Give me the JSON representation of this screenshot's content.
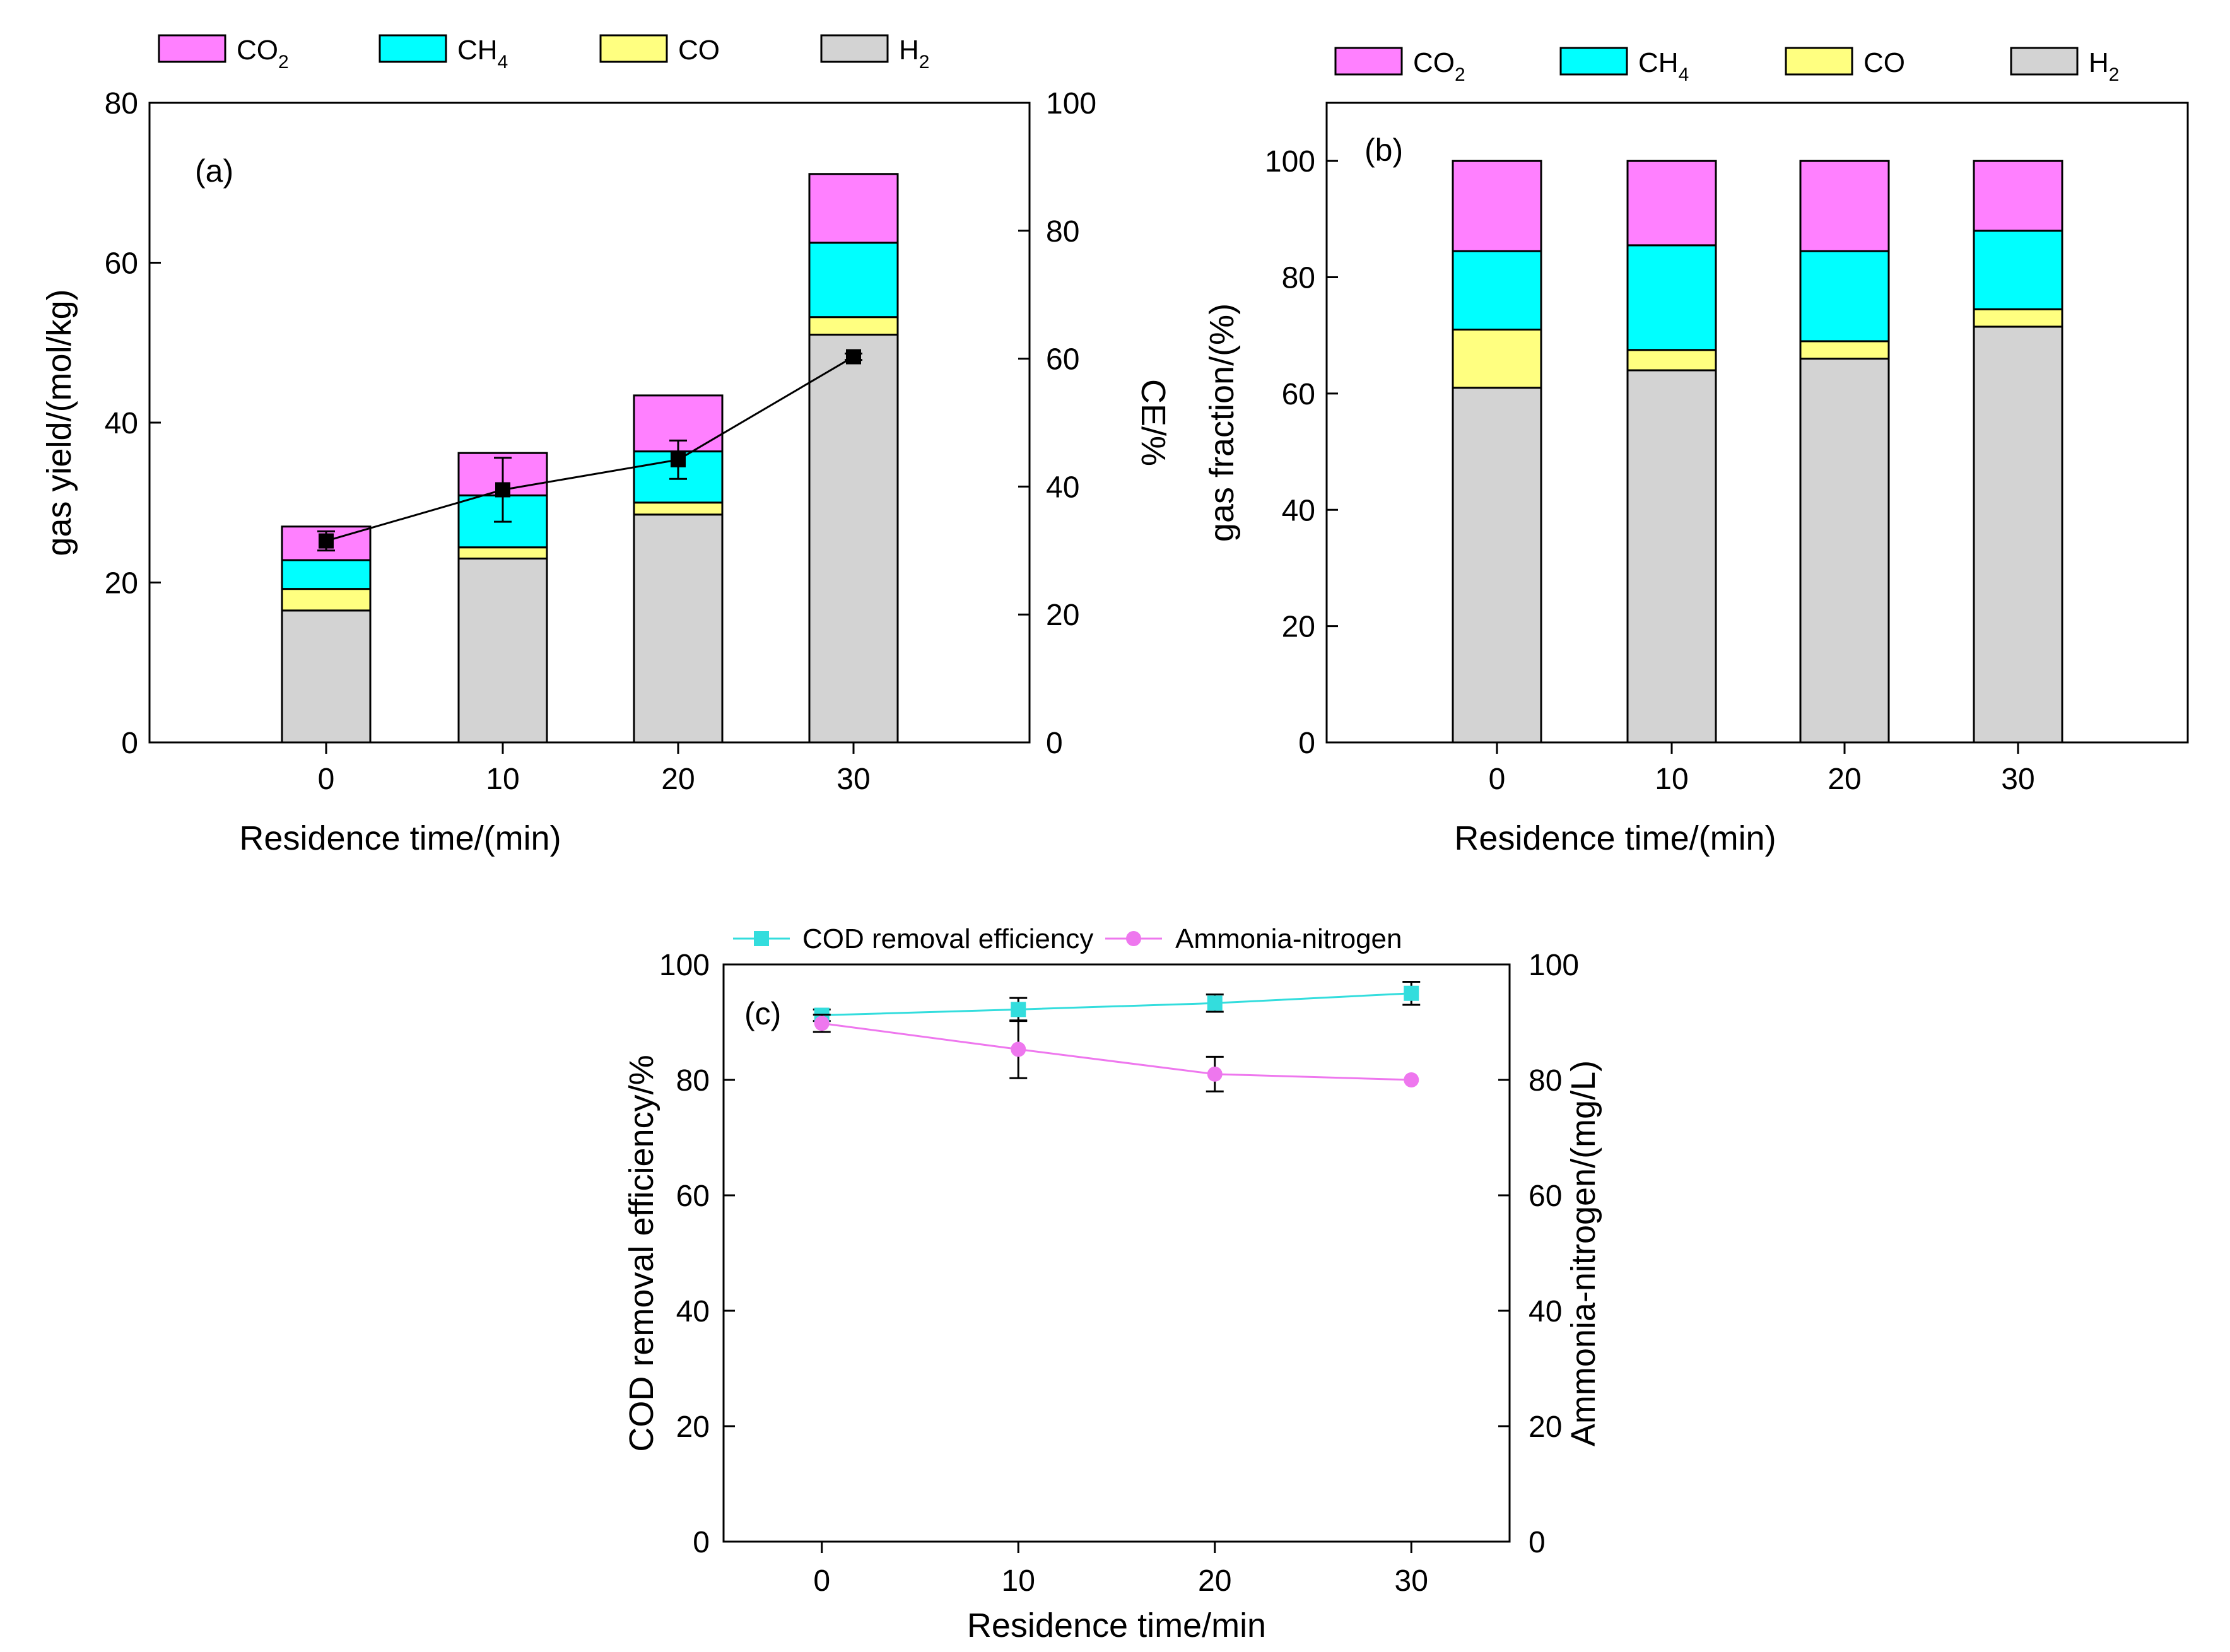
{
  "colors": {
    "CO2": "#ff80ff",
    "CH4": "#00ffff",
    "CO": "#ffff80",
    "H2": "#d3d3d3",
    "cod": "#33dddd",
    "ammonia": "#ee77ee",
    "ce": "#000000"
  },
  "chart_data": [
    {
      "id": "a",
      "type": "bar",
      "panel_label": "(a)",
      "stacked": true,
      "xlabel": "Residence time/(min)",
      "ylabel": "gas yield/(mol/kg)",
      "y2label": "CE/%",
      "categories": [
        "0",
        "10",
        "20",
        "30"
      ],
      "ylim": [
        0,
        80
      ],
      "yticks": [
        "0",
        "20",
        "40",
        "60",
        "80"
      ],
      "y2lim": [
        0,
        100
      ],
      "y2ticks": [
        "0",
        "20",
        "40",
        "60",
        "80",
        "100"
      ],
      "legend": [
        {
          "key": "CO2",
          "base": "CO",
          "sub": "2"
        },
        {
          "key": "CH4",
          "base": "CH",
          "sub": "4"
        },
        {
          "key": "CO",
          "base": "CO",
          "sub": ""
        },
        {
          "key": "H2",
          "base": "H",
          "sub": "2"
        }
      ],
      "series": [
        {
          "name": "H2",
          "values": [
            16.5,
            23.0,
            28.5,
            51.0
          ]
        },
        {
          "name": "CO",
          "values": [
            2.7,
            1.4,
            1.5,
            2.2
          ]
        },
        {
          "name": "CH4",
          "values": [
            3.6,
            6.5,
            6.4,
            9.3
          ]
        },
        {
          "name": "CO2",
          "values": [
            4.2,
            5.3,
            7.0,
            8.6
          ]
        }
      ],
      "line_series": {
        "name": "CE",
        "axis": "y2",
        "values": [
          31.5,
          39.5,
          44.2,
          60.3
        ],
        "errors": [
          1.5,
          5.0,
          3.0,
          0.5
        ]
      }
    },
    {
      "id": "b",
      "type": "bar",
      "panel_label": "(b)",
      "stacked": true,
      "xlabel": "Residence time/(min)",
      "ylabel": "gas fraction/(%)",
      "categories": [
        "0",
        "10",
        "20",
        "30"
      ],
      "ylim": [
        0,
        110
      ],
      "yticks": [
        "0",
        "20",
        "40",
        "60",
        "80",
        "100"
      ],
      "legend": [
        {
          "key": "CO2",
          "base": "CO",
          "sub": "2"
        },
        {
          "key": "CH4",
          "base": "CH",
          "sub": "4"
        },
        {
          "key": "CO",
          "base": "CO",
          "sub": ""
        },
        {
          "key": "H2",
          "base": "H",
          "sub": "2"
        }
      ],
      "series": [
        {
          "name": "H2",
          "values": [
            61.0,
            64.0,
            66.0,
            71.5
          ]
        },
        {
          "name": "CO",
          "values": [
            10.0,
            3.5,
            3.0,
            3.0
          ]
        },
        {
          "name": "CH4",
          "values": [
            13.5,
            18.0,
            15.5,
            13.5
          ]
        },
        {
          "name": "CO2",
          "values": [
            15.5,
            14.5,
            15.5,
            12.0
          ]
        }
      ]
    },
    {
      "id": "c",
      "type": "line",
      "panel_label": "(c)",
      "xlabel": "Residence time/min",
      "ylabel": "COD removal efficiency/%",
      "y2label": "Ammonia-nitrogen/(mg/L)",
      "x": [
        0,
        10,
        20,
        30
      ],
      "xlim": [
        -5,
        35
      ],
      "xticks": [
        "0",
        "10",
        "20",
        "30"
      ],
      "ylim": [
        0,
        100
      ],
      "yticks": [
        "0",
        "20",
        "40",
        "60",
        "80",
        "100"
      ],
      "y2lim": [
        0,
        100
      ],
      "y2ticks": [
        "0",
        "20",
        "40",
        "60",
        "80",
        "100"
      ],
      "series": [
        {
          "name": "COD removal efficiency",
          "axis": "y",
          "marker": "square",
          "color_key": "cod",
          "values": [
            91.2,
            92.2,
            93.3,
            95.0
          ],
          "errors": [
            1.0,
            2.0,
            1.5,
            2.0
          ]
        },
        {
          "name": "Ammonia-nitrogen",
          "axis": "y2",
          "marker": "circle",
          "color_key": "ammonia",
          "values": [
            89.8,
            85.3,
            81.0,
            80.0
          ],
          "errors": [
            1.5,
            5.0,
            3.0,
            0.0
          ]
        }
      ]
    }
  ]
}
